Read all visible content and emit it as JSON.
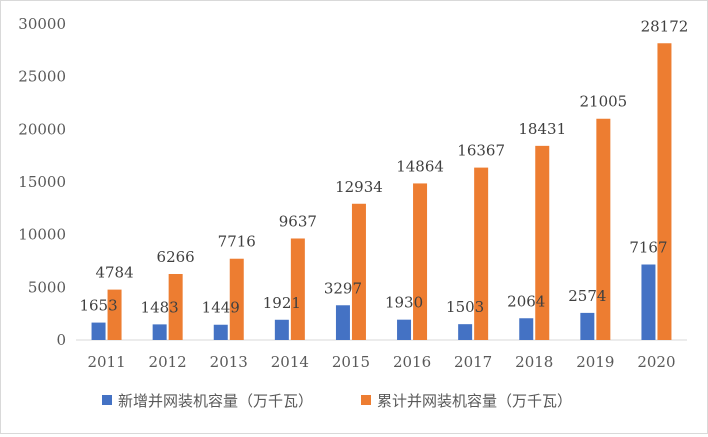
{
  "chart_data": {
    "type": "bar",
    "categories": [
      "2011",
      "2012",
      "2013",
      "2014",
      "2015",
      "2016",
      "2017",
      "2018",
      "2019",
      "2020"
    ],
    "series": [
      {
        "name": "新增并网装机容量（万千瓦）",
        "color": "#4472c4",
        "values": [
          1653,
          1483,
          1449,
          1921,
          3297,
          1930,
          1503,
          2064,
          2574,
          7167
        ]
      },
      {
        "name": "累计并网装机容量（万千瓦）",
        "color": "#ed7d31",
        "values": [
          4784,
          6266,
          7716,
          9637,
          12934,
          14864,
          16367,
          18431,
          21005,
          28172
        ]
      }
    ],
    "ylim": [
      0,
      30000
    ],
    "yticks": [
      0,
      5000,
      10000,
      15000,
      20000,
      25000,
      30000
    ],
    "grid": false,
    "legend": "bottom"
  }
}
